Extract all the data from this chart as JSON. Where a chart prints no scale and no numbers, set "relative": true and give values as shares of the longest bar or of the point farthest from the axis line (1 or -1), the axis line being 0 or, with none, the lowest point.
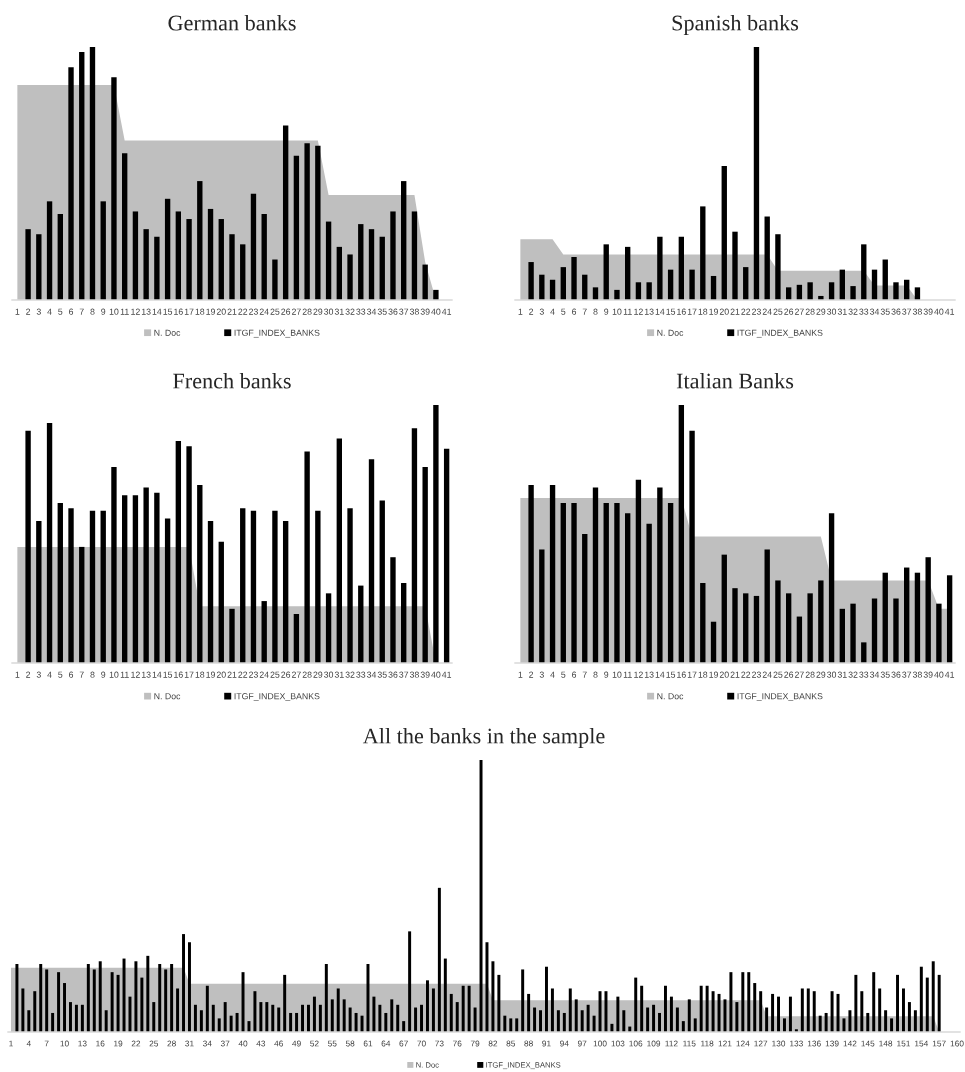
{
  "chart_data": [
    {
      "type": "bar",
      "title": "German banks",
      "relative": true,
      "legend": "bottom",
      "grid": false,
      "categories": [
        "1",
        "2",
        "3",
        "4",
        "5",
        "6",
        "7",
        "8",
        "9",
        "10",
        "11",
        "12",
        "13",
        "14",
        "15",
        "16",
        "17",
        "18",
        "19",
        "20",
        "21",
        "22",
        "23",
        "24",
        "25",
        "26",
        "27",
        "28",
        "29",
        "30",
        "31",
        "32",
        "33",
        "34",
        "35",
        "36",
        "37",
        "38",
        "39",
        "40",
        "41"
      ],
      "series": [
        {
          "name": "N. Doc",
          "type": "area",
          "color": "#bfbfbf",
          "values": [
            0.85,
            0.85,
            0.85,
            0.85,
            0.85,
            0.85,
            0.85,
            0.85,
            0.85,
            0.85,
            0.63,
            0.63,
            0.63,
            0.63,
            0.63,
            0.63,
            0.63,
            0.63,
            0.63,
            0.63,
            0.63,
            0.63,
            0.63,
            0.63,
            0.63,
            0.63,
            0.63,
            0.63,
            0.63,
            0.415,
            0.415,
            0.415,
            0.415,
            0.415,
            0.415,
            0.415,
            0.415,
            0.415,
            0.15,
            0,
            0
          ]
        },
        {
          "name": "ITGF_INDEX_BANKS",
          "color": "#000000",
          "values": [
            null,
            0.28,
            0.26,
            0.39,
            0.34,
            0.92,
            0.98,
            1.0,
            0.39,
            0.88,
            0.58,
            0.35,
            0.28,
            0.25,
            0.4,
            0.35,
            0.32,
            0.47,
            0.36,
            0.32,
            0.26,
            0.22,
            0.42,
            0.34,
            0.16,
            0.69,
            0.57,
            0.62,
            0.61,
            0.31,
            0.21,
            0.18,
            0.3,
            0.28,
            0.25,
            0.35,
            0.47,
            0.35,
            0.14,
            0.04,
            null
          ]
        }
      ]
    },
    {
      "type": "bar",
      "title": "Spanish banks",
      "relative": true,
      "legend": "bottom",
      "grid": false,
      "categories": [
        "1",
        "2",
        "3",
        "4",
        "5",
        "6",
        "7",
        "8",
        "9",
        "10",
        "11",
        "12",
        "13",
        "14",
        "15",
        "16",
        "17",
        "18",
        "19",
        "20",
        "21",
        "22",
        "23",
        "24",
        "25",
        "26",
        "27",
        "28",
        "29",
        "30",
        "31",
        "32",
        "33",
        "34",
        "35",
        "36",
        "37",
        "38",
        "39",
        "40",
        "41"
      ],
      "series": [
        {
          "name": "N. Doc",
          "type": "area",
          "color": "#bfbfbf",
          "values": [
            0.24,
            0.24,
            0.24,
            0.24,
            0.18,
            0.18,
            0.18,
            0.18,
            0.18,
            0.18,
            0.18,
            0.18,
            0.18,
            0.18,
            0.18,
            0.18,
            0.18,
            0.18,
            0.18,
            0.18,
            0.18,
            0.18,
            0.18,
            0.18,
            0.116,
            0.116,
            0.116,
            0.116,
            0.116,
            0.116,
            0.116,
            0.116,
            0.116,
            0.057,
            0.057,
            0.057,
            0.057,
            0,
            0,
            0,
            0
          ]
        },
        {
          "name": "ITGF_INDEX_BANKS",
          "color": "#000000",
          "values": [
            null,
            0.15,
            0.1,
            0.08,
            0.13,
            0.17,
            0.1,
            0.05,
            0.22,
            0.04,
            0.21,
            0.07,
            0.07,
            0.25,
            0.12,
            0.25,
            0.12,
            0.37,
            0.095,
            0.53,
            0.27,
            0.13,
            1.0,
            0.33,
            0.26,
            0.05,
            0.06,
            0.07,
            0.016,
            0.07,
            0.12,
            0.055,
            0.22,
            0.12,
            0.16,
            0.07,
            0.08,
            0.05,
            null,
            null,
            null
          ]
        }
      ]
    },
    {
      "type": "bar",
      "title": "French banks",
      "relative": true,
      "legend": "bottom",
      "grid": false,
      "categories": [
        "1",
        "2",
        "3",
        "4",
        "5",
        "6",
        "7",
        "8",
        "9",
        "10",
        "11",
        "12",
        "13",
        "14",
        "15",
        "16",
        "17",
        "18",
        "19",
        "20",
        "21",
        "22",
        "23",
        "24",
        "25",
        "26",
        "27",
        "28",
        "29",
        "30",
        "31",
        "32",
        "33",
        "34",
        "35",
        "36",
        "37",
        "38",
        "39",
        "40",
        "41"
      ],
      "series": [
        {
          "name": "N. Doc",
          "type": "area",
          "color": "#bfbfbf",
          "values": [
            0.45,
            0.45,
            0.45,
            0.45,
            0.45,
            0.45,
            0.45,
            0.45,
            0.45,
            0.45,
            0.45,
            0.45,
            0.45,
            0.45,
            0.45,
            0.45,
            0.45,
            0.22,
            0.22,
            0.22,
            0.22,
            0.22,
            0.22,
            0.22,
            0.22,
            0.22,
            0.22,
            0.22,
            0.22,
            0.22,
            0.22,
            0.22,
            0.22,
            0.22,
            0.22,
            0.22,
            0.22,
            0.22,
            0.22,
            0,
            0
          ]
        },
        {
          "name": "ITGF_INDEX_BANKS",
          "color": "#000000",
          "values": [
            null,
            0.9,
            0.55,
            0.93,
            0.62,
            0.6,
            0.45,
            0.59,
            0.59,
            0.76,
            0.65,
            0.65,
            0.68,
            0.66,
            0.56,
            0.86,
            0.84,
            0.69,
            0.55,
            0.47,
            0.21,
            0.6,
            0.59,
            0.24,
            0.59,
            0.55,
            0.19,
            0.82,
            0.59,
            0.27,
            0.87,
            0.6,
            0.3,
            0.79,
            0.63,
            0.41,
            0.31,
            0.91,
            0.76,
            1.0,
            0.83
          ]
        }
      ]
    },
    {
      "type": "bar",
      "title": "Italian Banks",
      "relative": true,
      "legend": "bottom",
      "grid": false,
      "categories": [
        "1",
        "2",
        "3",
        "4",
        "5",
        "6",
        "7",
        "8",
        "9",
        "10",
        "11",
        "12",
        "13",
        "14",
        "15",
        "16",
        "17",
        "18",
        "19",
        "20",
        "21",
        "22",
        "23",
        "24",
        "25",
        "26",
        "27",
        "28",
        "29",
        "30",
        "31",
        "32",
        "33",
        "34",
        "35",
        "36",
        "37",
        "38",
        "39",
        "40",
        "41"
      ],
      "series": [
        {
          "name": "N. Doc",
          "type": "area",
          "color": "#bfbfbf",
          "values": [
            0.64,
            0.64,
            0.64,
            0.64,
            0.64,
            0.64,
            0.64,
            0.64,
            0.64,
            0.64,
            0.64,
            0.64,
            0.64,
            0.64,
            0.64,
            0.64,
            0.49,
            0.49,
            0.49,
            0.49,
            0.49,
            0.49,
            0.49,
            0.49,
            0.49,
            0.49,
            0.49,
            0.49,
            0.49,
            0.32,
            0.32,
            0.32,
            0.32,
            0.32,
            0.32,
            0.32,
            0.32,
            0.32,
            0.32,
            0.21,
            0.21
          ]
        },
        {
          "name": "ITGF_INDEX_BANKS",
          "color": "#000000",
          "values": [
            null,
            0.69,
            0.44,
            0.69,
            0.62,
            0.62,
            0.5,
            0.68,
            0.62,
            0.62,
            0.58,
            0.71,
            0.54,
            0.68,
            0.62,
            1.0,
            0.9,
            0.31,
            0.16,
            0.42,
            0.29,
            0.27,
            0.26,
            0.44,
            0.32,
            0.27,
            0.18,
            0.27,
            0.32,
            0.58,
            0.21,
            0.23,
            0.08,
            0.25,
            0.35,
            0.25,
            0.37,
            0.35,
            0.41,
            0.23,
            0.34
          ]
        }
      ]
    },
    {
      "type": "bar",
      "title": "All the banks in the sample",
      "relative": true,
      "legend": "bottom",
      "grid": false,
      "categories": [
        "1",
        null,
        null,
        "4",
        null,
        null,
        "7",
        null,
        null,
        "10",
        null,
        null,
        "13",
        null,
        null,
        "16",
        null,
        null,
        "19",
        null,
        null,
        "22",
        null,
        null,
        "25",
        null,
        null,
        "28",
        null,
        null,
        "31",
        null,
        null,
        "34",
        null,
        null,
        "37",
        null,
        null,
        "40",
        null,
        null,
        "43",
        null,
        null,
        "46",
        null,
        null,
        "49",
        null,
        null,
        "52",
        null,
        null,
        "55",
        null,
        null,
        "58",
        null,
        null,
        "61",
        null,
        null,
        "64",
        null,
        null,
        "67",
        null,
        null,
        "70",
        null,
        null,
        "73",
        null,
        null,
        "76",
        null,
        null,
        "79",
        null,
        null,
        "82",
        null,
        null,
        "85",
        null,
        null,
        "88",
        null,
        null,
        "91",
        null,
        null,
        "94",
        null,
        null,
        "97",
        null,
        null,
        "100",
        null,
        null,
        "103",
        null,
        null,
        "106",
        null,
        null,
        "109",
        null,
        null,
        "112",
        null,
        null,
        "115",
        null,
        null,
        "118",
        null,
        null,
        "121",
        null,
        null,
        "124",
        null,
        null,
        "127",
        null,
        null,
        "130",
        null,
        null,
        "133",
        null,
        null,
        "136",
        null,
        null,
        "139",
        null,
        null,
        "142",
        null,
        null,
        "145",
        null,
        null,
        "148",
        null,
        null,
        "151",
        null,
        null,
        "154",
        null,
        null,
        "157",
        null,
        null,
        "160"
      ],
      "series": [
        {
          "name": "N. Doc",
          "type": "area",
          "color": "#bfbfbf",
          "values": [
            0.236,
            0.236,
            0.236,
            0.236,
            0.236,
            0.236,
            0.236,
            0.236,
            0.236,
            0.236,
            0.236,
            0.236,
            0.236,
            0.236,
            0.236,
            0.236,
            0.236,
            0.236,
            0.236,
            0.236,
            0.236,
            0.236,
            0.236,
            0.236,
            0.236,
            0.236,
            0.236,
            0.236,
            0.236,
            0.236,
            0.177,
            0.177,
            0.177,
            0.177,
            0.177,
            0.177,
            0.177,
            0.177,
            0.177,
            0.177,
            0.177,
            0.177,
            0.177,
            0.177,
            0.177,
            0.177,
            0.177,
            0.177,
            0.177,
            0.177,
            0.177,
            0.177,
            0.177,
            0.177,
            0.177,
            0.177,
            0.177,
            0.177,
            0.177,
            0.177,
            0.177,
            0.177,
            0.177,
            0.177,
            0.177,
            0.177,
            0.177,
            0.177,
            0.177,
            0.177,
            0.177,
            0.177,
            0.177,
            0.177,
            0.177,
            0.177,
            0.177,
            0.177,
            0.177,
            0.177,
            0.177,
            0.117,
            0.117,
            0.117,
            0.117,
            0.117,
            0.117,
            0.117,
            0.117,
            0.117,
            0.117,
            0.117,
            0.117,
            0.117,
            0.117,
            0.117,
            0.117,
            0.117,
            0.117,
            0.117,
            0.117,
            0.117,
            0.117,
            0.117,
            0.117,
            0.117,
            0.117,
            0.117,
            0.117,
            0.117,
            0.117,
            0.117,
            0.117,
            0.117,
            0.117,
            0.117,
            0.117,
            0.117,
            0.117,
            0.117,
            0.117,
            0.117,
            0.117,
            0.117,
            0.117,
            0.117,
            0.117,
            0.058,
            0.058,
            0.058,
            0.058,
            0.058,
            0.058,
            0.058,
            0.058,
            0.058,
            0.058,
            0.058,
            0.058,
            0.058,
            0.058,
            0.058,
            0.058,
            0.058,
            0.058,
            0.058,
            0.058,
            0.058,
            0.058,
            0.058,
            0.058,
            0.058,
            0.058,
            0.058,
            0.058,
            0.058,
            0,
            0,
            0,
            0
          ]
        },
        {
          "name": "ITGF_INDEX_BANKS",
          "color": "#000000",
          "values": [
            null,
            0.25,
            0.16,
            0.08,
            0.15,
            0.25,
            0.23,
            0.07,
            0.22,
            0.18,
            0.11,
            0.1,
            0.1,
            0.25,
            0.23,
            0.26,
            0.08,
            0.22,
            0.21,
            0.27,
            0.13,
            0.26,
            0.2,
            0.28,
            0.11,
            0.25,
            0.23,
            0.25,
            0.16,
            0.36,
            0.33,
            0.1,
            0.08,
            0.17,
            0.1,
            0.05,
            0.11,
            0.06,
            0.07,
            0.22,
            0.04,
            0.15,
            0.11,
            0.11,
            0.1,
            0.09,
            0.21,
            0.07,
            0.07,
            0.1,
            0.1,
            0.13,
            0.1,
            0.25,
            0.12,
            0.16,
            0.12,
            0.09,
            0.07,
            0.06,
            0.25,
            0.13,
            0.1,
            0.07,
            0.12,
            0.1,
            0.04,
            0.37,
            0.09,
            0.1,
            0.19,
            0.16,
            0.53,
            0.27,
            0.14,
            0.11,
            0.17,
            0.17,
            0.09,
            1.0,
            0.33,
            0.26,
            0.21,
            0.06,
            0.05,
            0.05,
            0.23,
            0.14,
            0.09,
            0.08,
            0.24,
            0.16,
            0.08,
            0.07,
            0.16,
            0.12,
            0.08,
            0.1,
            0.06,
            0.15,
            0.15,
            0.03,
            0.13,
            0.08,
            0.02,
            0.2,
            0.17,
            0.09,
            0.1,
            0.07,
            0.17,
            0.13,
            0.09,
            0.04,
            0.12,
            0.05,
            0.17,
            0.17,
            0.15,
            0.14,
            0.12,
            0.22,
            0.11,
            0.22,
            0.22,
            0.18,
            0.15,
            0.09,
            0.14,
            0.13,
            0.05,
            0.13,
            0.01,
            0.16,
            0.16,
            0.15,
            0.06,
            0.07,
            0.15,
            0.14,
            0.05,
            0.08,
            0.21,
            0.15,
            0.07,
            0.22,
            0.16,
            0.08,
            0.05,
            0.21,
            0.16,
            0.11,
            0.08,
            0.24,
            0.2,
            0.26,
            0.21,
            null,
            null,
            null
          ]
        }
      ]
    }
  ]
}
